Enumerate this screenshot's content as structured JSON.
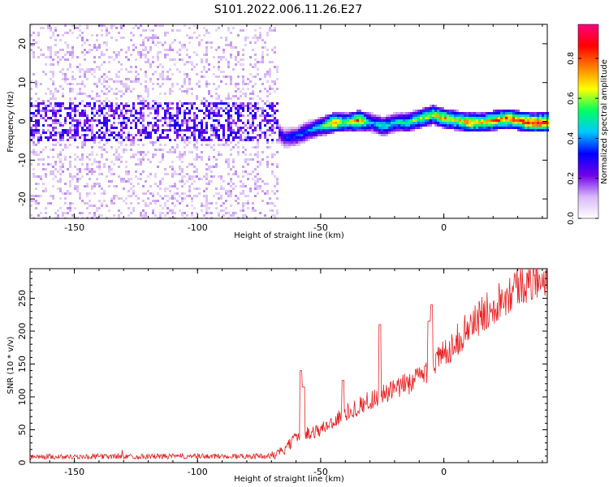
{
  "title": "S101.2022.006.11.26.E27",
  "chart_data": [
    {
      "type": "heatmap",
      "xlabel": "Height of straight line (km)",
      "ylabel": "Frequency (Hz)",
      "xlim": [
        -168,
        42
      ],
      "ylim": [
        -25,
        25
      ],
      "x_ticks": [
        -150,
        -100,
        -50,
        0
      ],
      "y_ticks": [
        -20,
        -10,
        0,
        10,
        20
      ],
      "colorbar": {
        "label": "Normalized spectral amplitude",
        "range": [
          0,
          0.97
        ],
        "ticks": [
          0.0,
          0.2,
          0.4,
          0.6,
          0.8
        ],
        "colors": [
          "#ffffff",
          "#d8b8f8",
          "#7000e8",
          "#0000ff",
          "#00c8ff",
          "#00ff60",
          "#ffff00",
          "#ff8000",
          "#ff0000",
          "#ff0080"
        ]
      },
      "ridge": {
        "x": [
          -70,
          -65,
          -60,
          -55,
          -50,
          -45,
          -40,
          -35,
          -30,
          -25,
          -20,
          -15,
          -10,
          -5,
          0,
          5,
          10,
          15,
          20,
          25,
          30,
          35,
          40
        ],
        "y": [
          -1.5,
          -4,
          -3.5,
          -2,
          -1,
          0,
          0,
          0.5,
          0,
          -1,
          0,
          0,
          1,
          2,
          1,
          0.5,
          0,
          0,
          0.5,
          1,
          0.5,
          0,
          0
        ],
        "amplitude": [
          0.3,
          0.35,
          0.4,
          0.45,
          0.55,
          0.85,
          0.6,
          0.9,
          0.45,
          0.55,
          0.5,
          0.6,
          0.65,
          0.7,
          0.8,
          0.7,
          0.85,
          0.75,
          0.85,
          0.9,
          0.9,
          0.95,
          0.95
        ]
      },
      "noise_band": {
        "x_range": [
          -168,
          -68
        ],
        "y_center": 0,
        "y_halfwidth": 5,
        "amplitude": 0.22
      }
    },
    {
      "type": "line",
      "xlabel": "Height of straight line (km)",
      "ylabel": "SNR (10 * v/v)",
      "xlim": [
        -168,
        42
      ],
      "ylim": [
        0,
        295
      ],
      "x_ticks": [
        -150,
        -100,
        -50,
        0
      ],
      "y_ticks": [
        0,
        50,
        100,
        150,
        200,
        250
      ],
      "color": "#e82020",
      "trend": {
        "x": [
          -168,
          -70,
          -65,
          -60,
          -55,
          -50,
          -40,
          -30,
          -20,
          -10,
          0,
          10,
          20,
          30,
          42
        ],
        "y": [
          9,
          10,
          18,
          38,
          45,
          50,
          75,
          95,
          110,
          130,
          165,
          205,
          240,
          270,
          285
        ]
      },
      "spikes": [
        {
          "x": -58,
          "y": 140
        },
        {
          "x": -57,
          "y": 115
        },
        {
          "x": -41,
          "y": 125
        },
        {
          "x": -26,
          "y": 210
        },
        {
          "x": -6,
          "y": 215
        },
        {
          "x": -5,
          "y": 240
        }
      ]
    }
  ]
}
